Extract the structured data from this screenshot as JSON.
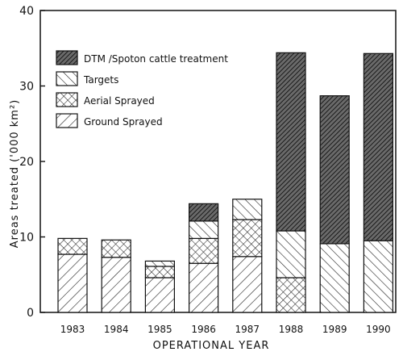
{
  "chart_data": {
    "type": "bar",
    "stacked": true,
    "xlabel": "OPERATIONAL YEAR",
    "ylabel": "Areas treated ('000 km²)",
    "ylim": [
      0,
      40
    ],
    "yticks": [
      0,
      10,
      20,
      30,
      40
    ],
    "grid": false,
    "legend_position": "top-left",
    "categories": [
      "1983",
      "1984",
      "1985",
      "1986",
      "1987",
      "1988",
      "1989",
      "1990"
    ],
    "series": [
      {
        "name": "Ground Sprayed",
        "pattern": "diag-right-wide",
        "values": [
          7.7,
          7.3,
          4.6,
          6.5,
          7.4,
          0,
          0,
          0
        ]
      },
      {
        "name": "Aerial Sprayed",
        "pattern": "crosshatch",
        "values": [
          2.1,
          2.3,
          1.5,
          3.3,
          4.9,
          4.6,
          0,
          0
        ]
      },
      {
        "name": "Targets",
        "pattern": "diag-left",
        "values": [
          0,
          0,
          0.7,
          2.3,
          2.7,
          6.2,
          9.1,
          9.5
        ]
      },
      {
        "name": "DTM /Spoton cattle treatment",
        "pattern": "dense-dark",
        "values": [
          0,
          0,
          0,
          2.3,
          0,
          23.6,
          19.6,
          24.8
        ]
      }
    ],
    "legend_order": [
      "DTM /Spoton cattle treatment",
      "Targets",
      "Aerial Sprayed",
      "Ground Sprayed"
    ]
  }
}
